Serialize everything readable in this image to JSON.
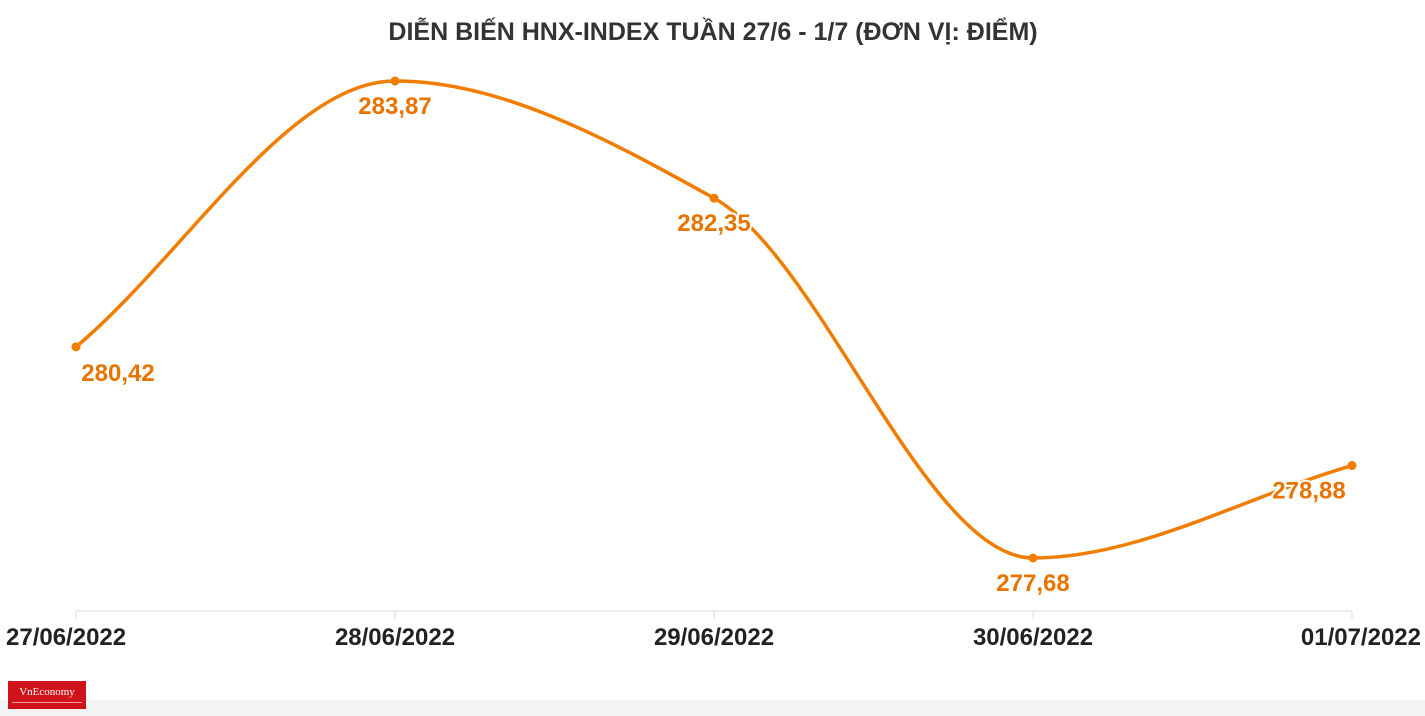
{
  "chart_data": {
    "type": "line",
    "title": "DIỄN BIẾN HNX-INDEX TUẦN 27/6 - 1/7 (ĐƠN VỊ: ĐIỂM)",
    "categories": [
      "27/06/2022",
      "28/06/2022",
      "29/06/2022",
      "30/06/2022",
      "01/07/2022"
    ],
    "series": [
      {
        "values": [
          280.42,
          283.87,
          282.35,
          277.68,
          278.88
        ],
        "labels": [
          "280,42",
          "283,87",
          "282,35",
          "277,68",
          "278,88"
        ],
        "color": "#f07d00"
      }
    ],
    "ylim": [
      276.0,
      284.0
    ],
    "curve": "smooth",
    "grid": false,
    "label_color": "#e87400",
    "axis_color": "#e6e6e6"
  },
  "logo": {
    "text": "VnEconomy"
  }
}
